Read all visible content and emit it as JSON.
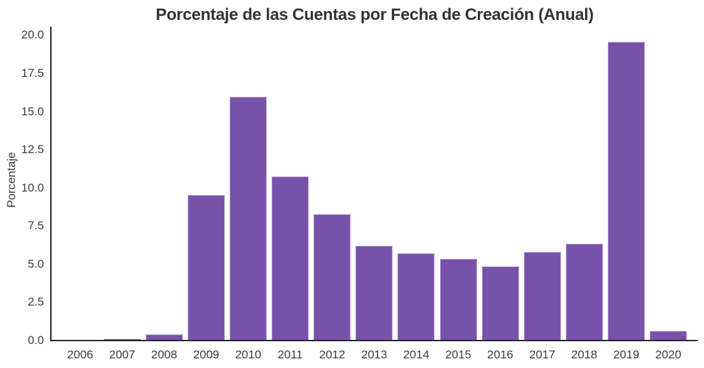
{
  "chart_data": {
    "type": "bar",
    "title": "Porcentaje de las Cuentas por Fecha de Creación (Anual)",
    "ylabel": "Porcentaje",
    "xlabel": "",
    "categories": [
      "2006",
      "2007",
      "2008",
      "2009",
      "2010",
      "2011",
      "2012",
      "2013",
      "2014",
      "2015",
      "2016",
      "2017",
      "2018",
      "2019",
      "2020"
    ],
    "values": [
      0.02,
      0.1,
      0.4,
      9.55,
      15.95,
      10.75,
      8.3,
      6.2,
      5.7,
      5.35,
      4.85,
      5.8,
      6.35,
      19.55,
      0.65
    ],
    "yticks": [
      0.0,
      2.5,
      5.0,
      7.5,
      10.0,
      12.5,
      15.0,
      17.5,
      20.0
    ],
    "ylim": [
      0,
      20.56
    ],
    "grid": false,
    "legend": "none",
    "colors": {
      "bar_fill": "#7752a9",
      "bar_edge": "#b9a4d9",
      "axis": "#262626",
      "text": "#3a3a3a",
      "background": "#ffffff"
    }
  }
}
